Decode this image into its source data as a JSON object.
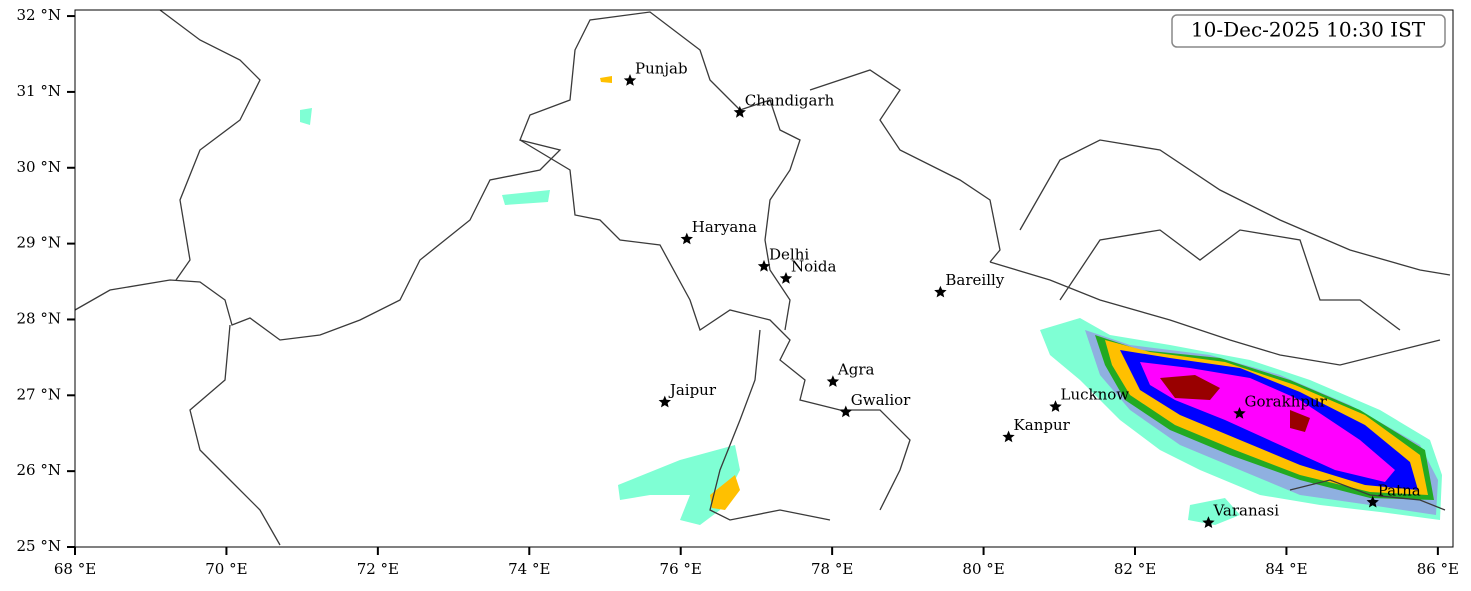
{
  "map": {
    "title": "10-Dec-2025 10:30 IST",
    "xlim": [
      68,
      86.2
    ],
    "ylim": [
      25,
      32.08
    ],
    "xticks": [
      {
        "value": 68,
        "label": "68 °E"
      },
      {
        "value": 70,
        "label": "70 °E"
      },
      {
        "value": 72,
        "label": "72 °E"
      },
      {
        "value": 74,
        "label": "74 °E"
      },
      {
        "value": 76,
        "label": "76 °E"
      },
      {
        "value": 78,
        "label": "78 °E"
      },
      {
        "value": 80,
        "label": "80 °E"
      },
      {
        "value": 82,
        "label": "82 °E"
      },
      {
        "value": 84,
        "label": "84 °E"
      },
      {
        "value": 86,
        "label": "86 °E"
      }
    ],
    "yticks": [
      {
        "value": 25,
        "label": "25 °N"
      },
      {
        "value": 26,
        "label": "26 °N"
      },
      {
        "value": 27,
        "label": "27 °N"
      },
      {
        "value": 28,
        "label": "28 °N"
      },
      {
        "value": 29,
        "label": "29 °N"
      },
      {
        "value": 30,
        "label": "30 °N"
      },
      {
        "value": 31,
        "label": "31 °N"
      },
      {
        "value": 32,
        "label": "32 °N"
      }
    ],
    "cities": [
      {
        "name": "Punjab",
        "lon": 75.33,
        "lat": 31.15
      },
      {
        "name": "Chandigarh",
        "lon": 76.78,
        "lat": 30.73
      },
      {
        "name": "Haryana",
        "lon": 76.08,
        "lat": 29.06
      },
      {
        "name": "Delhi",
        "lon": 77.1,
        "lat": 28.7
      },
      {
        "name": "Noida",
        "lon": 77.39,
        "lat": 28.54
      },
      {
        "name": "Bareilly",
        "lon": 79.43,
        "lat": 28.36
      },
      {
        "name": "Agra",
        "lon": 78.01,
        "lat": 27.18
      },
      {
        "name": "Jaipur",
        "lon": 75.79,
        "lat": 26.91
      },
      {
        "name": "Gwalior",
        "lon": 78.18,
        "lat": 26.78
      },
      {
        "name": "Lucknow",
        "lon": 80.95,
        "lat": 26.85
      },
      {
        "name": "Kanpur",
        "lon": 80.33,
        "lat": 26.45
      },
      {
        "name": "Gorakhpur",
        "lon": 83.38,
        "lat": 26.76
      },
      {
        "name": "Varanasi",
        "lon": 82.97,
        "lat": 25.32
      },
      {
        "name": "Patna",
        "lon": 85.14,
        "lat": 25.59
      }
    ]
  }
}
